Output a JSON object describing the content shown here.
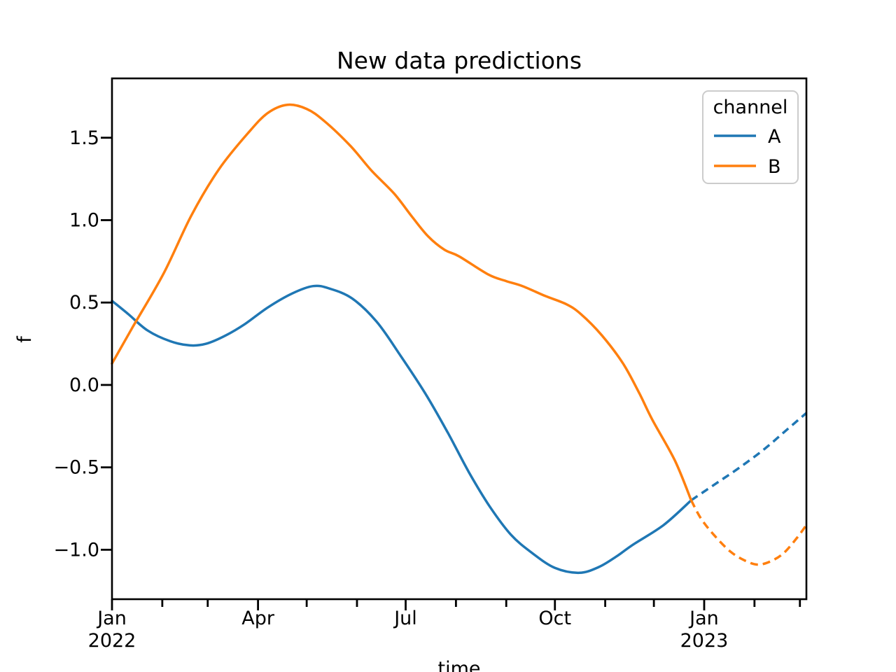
{
  "figure": {
    "title": "New data predictions",
    "xlabel": "time",
    "ylabel": "f"
  },
  "legend": {
    "title": "channel",
    "items": [
      {
        "label": "A",
        "color": "#1f77b4"
      },
      {
        "label": "B",
        "color": "#ff7f0e"
      }
    ]
  },
  "chart_data": {
    "type": "line",
    "title": "New data predictions",
    "xlabel": "time",
    "ylabel": "f",
    "x_unit": "days since Jan 1, 2022",
    "xlim": [
      0,
      428
    ],
    "ylim": [
      -1.3,
      1.86
    ],
    "grid": false,
    "legend_position": "upper right",
    "y_ticks": [
      {
        "value": 1.5,
        "label": "1.5"
      },
      {
        "value": 1.0,
        "label": "1.0"
      },
      {
        "value": 0.5,
        "label": "0.5"
      },
      {
        "value": 0.0,
        "label": "0.0"
      },
      {
        "value": -0.5,
        "label": "−0.5"
      },
      {
        "value": -1.0,
        "label": "−1.0"
      }
    ],
    "x_major_ticks": [
      {
        "day": 0,
        "label": [
          "Jan",
          "2022"
        ]
      },
      {
        "day": 90,
        "label": [
          "Apr"
        ]
      },
      {
        "day": 181,
        "label": [
          "Jul"
        ]
      },
      {
        "day": 273,
        "label": [
          "Oct"
        ]
      },
      {
        "day": 365,
        "label": [
          "Jan",
          "2023"
        ]
      }
    ],
    "x_minor_tick_days": [
      31,
      59,
      120,
      151,
      212,
      243,
      304,
      334,
      396,
      424
    ],
    "series": [
      {
        "name": "A",
        "color": "#1f77b4",
        "history": [
          [
            0,
            0.51
          ],
          [
            10,
            0.43
          ],
          [
            22,
            0.33
          ],
          [
            36,
            0.265
          ],
          [
            48,
            0.24
          ],
          [
            58,
            0.25
          ],
          [
            70,
            0.3
          ],
          [
            82,
            0.37
          ],
          [
            96,
            0.47
          ],
          [
            111,
            0.555
          ],
          [
            124,
            0.6
          ],
          [
            134,
            0.585
          ],
          [
            148,
            0.525
          ],
          [
            163,
            0.385
          ],
          [
            177,
            0.19
          ],
          [
            193,
            -0.05
          ],
          [
            207,
            -0.29
          ],
          [
            220,
            -0.53
          ],
          [
            233,
            -0.74
          ],
          [
            246,
            -0.91
          ],
          [
            259,
            -1.02
          ],
          [
            273,
            -1.11
          ],
          [
            288,
            -1.14
          ],
          [
            300,
            -1.105
          ],
          [
            311,
            -1.04
          ],
          [
            321,
            -0.97
          ],
          [
            340,
            -0.85
          ],
          [
            357,
            -0.7
          ]
        ],
        "forecast": [
          [
            357,
            -0.7
          ],
          [
            372,
            -0.6
          ],
          [
            387,
            -0.5
          ],
          [
            402,
            -0.39
          ],
          [
            415,
            -0.28
          ],
          [
            428,
            -0.17
          ]
        ]
      },
      {
        "name": "B",
        "color": "#ff7f0e",
        "history": [
          [
            0,
            0.13
          ],
          [
            13,
            0.355
          ],
          [
            32,
            0.68
          ],
          [
            49,
            1.03
          ],
          [
            66,
            1.31
          ],
          [
            84,
            1.53
          ],
          [
            96,
            1.65
          ],
          [
            108,
            1.7
          ],
          [
            120,
            1.675
          ],
          [
            131,
            1.6
          ],
          [
            147,
            1.45
          ],
          [
            160,
            1.3
          ],
          [
            174,
            1.16
          ],
          [
            185,
            1.02
          ],
          [
            195,
            0.9
          ],
          [
            205,
            0.82
          ],
          [
            214,
            0.78
          ],
          [
            232,
            0.67
          ],
          [
            243,
            0.63
          ],
          [
            253,
            0.6
          ],
          [
            267,
            0.54
          ],
          [
            280,
            0.49
          ],
          [
            289,
            0.43
          ],
          [
            302,
            0.3
          ],
          [
            315,
            0.13
          ],
          [
            325,
            -0.05
          ],
          [
            333,
            -0.21
          ],
          [
            347,
            -0.46
          ],
          [
            357,
            -0.7
          ]
        ],
        "forecast": [
          [
            357,
            -0.7
          ],
          [
            363,
            -0.81
          ],
          [
            371,
            -0.91
          ],
          [
            381,
            -1.01
          ],
          [
            390,
            -1.065
          ],
          [
            398,
            -1.09
          ],
          [
            406,
            -1.07
          ],
          [
            414,
            -1.02
          ],
          [
            422,
            -0.93
          ],
          [
            428,
            -0.85
          ]
        ]
      }
    ]
  }
}
